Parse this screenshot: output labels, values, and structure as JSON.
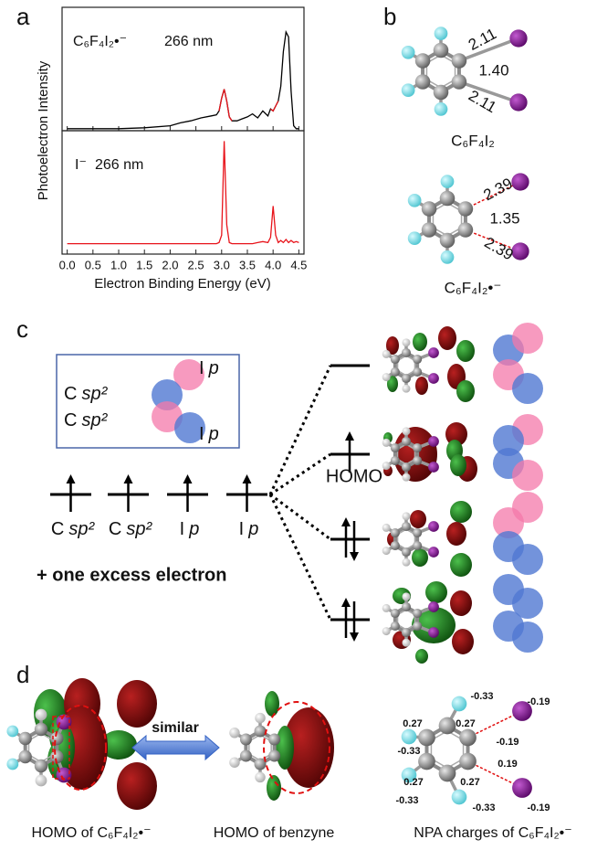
{
  "panel_labels": [
    "a",
    "b",
    "c",
    "d"
  ],
  "chart_data": [
    {
      "type": "line",
      "label": "C₆F₄I₂•⁻",
      "annotation": "266 nm",
      "ylabel": "Photoelectron Intensity",
      "x": [
        0,
        0.5,
        1.0,
        1.5,
        2.0,
        2.2,
        2.4,
        2.6,
        2.8,
        2.9,
        2.95,
        3.0,
        3.05,
        3.1,
        3.15,
        3.2,
        3.3,
        3.4,
        3.5,
        3.6,
        3.7,
        3.8,
        3.9,
        3.95,
        4.0,
        4.05,
        4.1,
        4.15,
        4.2,
        4.25,
        4.3,
        4.35,
        4.4,
        4.45,
        4.5
      ],
      "series": [
        {
          "color": "#000000",
          "values": [
            0.02,
            0.02,
            0.02,
            0.03,
            0.05,
            0.08,
            0.1,
            0.13,
            0.15,
            0.16,
            0.2,
            0.33,
            0.42,
            0.3,
            0.14,
            0.1,
            0.1,
            0.12,
            0.14,
            0.17,
            0.13,
            0.2,
            0.15,
            0.22,
            0.2,
            0.25,
            0.3,
            0.45,
            0.8,
            1.0,
            0.95,
            0.4,
            0.05,
            0.02,
            0.02
          ]
        },
        {
          "color": "#e8141b",
          "values": [
            null,
            null,
            null,
            null,
            null,
            null,
            null,
            null,
            null,
            null,
            0.2,
            0.33,
            0.42,
            0.3,
            0.14,
            0.1,
            null,
            null,
            null,
            null,
            null,
            null,
            null,
            0.22,
            0.2,
            0.25,
            0.3,
            null,
            null,
            null,
            null,
            null,
            null,
            null,
            null
          ]
        }
      ],
      "xlim": [
        -0.1,
        4.6
      ],
      "ylim": [
        0,
        1.25
      ]
    },
    {
      "type": "line",
      "label": "I⁻",
      "annotation": "266 nm",
      "xlabel": "Electron Binding Energy (eV)",
      "x": [
        0,
        0.5,
        1.0,
        1.5,
        2.0,
        2.2,
        2.4,
        2.6,
        2.8,
        2.9,
        2.95,
        3.0,
        3.05,
        3.1,
        3.15,
        3.2,
        3.3,
        3.4,
        3.5,
        3.6,
        3.7,
        3.8,
        3.9,
        3.95,
        4.0,
        4.05,
        4.1,
        4.15,
        4.2,
        4.25,
        4.3,
        4.35,
        4.4,
        4.45,
        4.5
      ],
      "series": [
        {
          "color": "#e8141b",
          "values": [
            0.02,
            0.02,
            0.02,
            0.02,
            0.02,
            0.02,
            0.02,
            0.02,
            0.02,
            0.02,
            0.03,
            0.1,
            1.0,
            0.2,
            0.03,
            0.02,
            0.02,
            0.02,
            0.02,
            0.02,
            0.03,
            0.04,
            0.03,
            0.08,
            0.38,
            0.1,
            0.03,
            0.05,
            0.03,
            0.06,
            0.03,
            0.05,
            0.03,
            0.04,
            0.03
          ]
        }
      ],
      "xlim": [
        -0.1,
        4.6
      ],
      "ylim": [
        -0.08,
        1.1
      ],
      "xticks": [
        {
          "value": 0,
          "label": "0.0"
        },
        0.5,
        {
          "value": 1,
          "label": "1.0"
        },
        1.5,
        {
          "value": 2,
          "label": "2.0"
        },
        2.5,
        {
          "value": 3,
          "label": "3.0"
        },
        3.5,
        {
          "value": 4,
          "label": "4.0"
        },
        4.5
      ]
    }
  ],
  "panel_b": [
    {
      "bond_labels": [
        "2.11",
        "1.40",
        "2.11"
      ],
      "name": "C₆F₄I₂"
    },
    {
      "bond_labels": [
        "2.39",
        "1.35",
        "2.39"
      ],
      "name": "C₆F₄I₂•⁻"
    }
  ],
  "panel_c": {
    "legend": [
      {
        "atom": "C",
        "orbital": "sp²"
      },
      {
        "atom": "I",
        "orbital": "p"
      },
      {
        "atom": "C",
        "orbital": "sp²"
      },
      {
        "atom": "I",
        "orbital": "p"
      }
    ],
    "levels": [
      {
        "atom": "C",
        "orbital": "sp²"
      },
      {
        "atom": "C",
        "orbital": "sp²"
      },
      {
        "atom": "I",
        "orbital": "p"
      },
      {
        "atom": "I",
        "orbital": "p"
      }
    ],
    "homo": "HOMO",
    "note": "+ one excess electron"
  },
  "panel_d": {
    "similar": "similar",
    "captions": [
      "HOMO of C₆F₄I₂•⁻",
      "HOMO of benzyne",
      "NPA charges of C₆F₄I₂•⁻"
    ],
    "charges": [
      "-0.33",
      "0.27",
      "0.27",
      "-0.19",
      "-0.19",
      "0.19",
      "-0.19",
      "-0.33",
      "0.27",
      "0.27",
      "-0.33",
      "-0.33"
    ]
  }
}
